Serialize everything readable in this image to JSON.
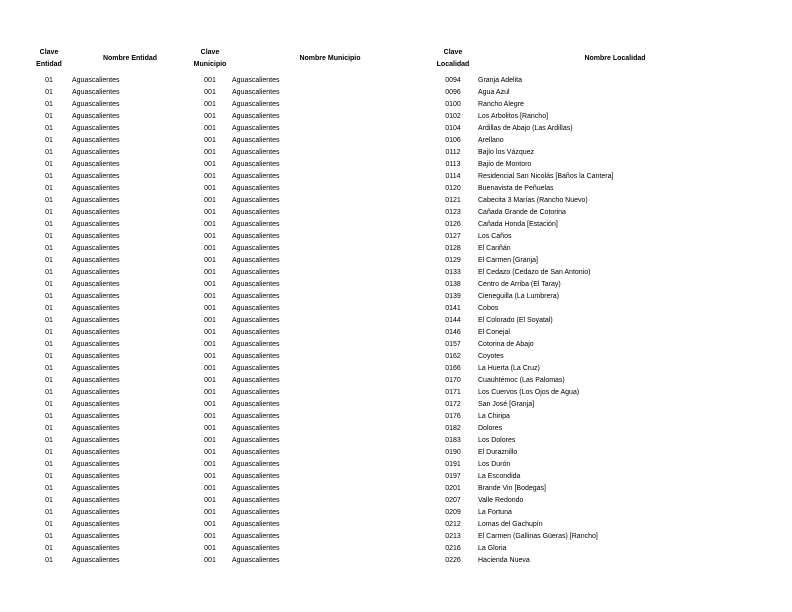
{
  "headers": {
    "clave_entidad": [
      "Clave",
      "Entidad"
    ],
    "nombre_entidad": "Nombre Entidad",
    "clave_municipio": [
      "Clave",
      "Municipio"
    ],
    "nombre_municipio": "Nombre Municipio",
    "clave_localidad": [
      "Clave",
      "Localidad"
    ],
    "nombre_localidad": "Nombre Localidad"
  },
  "rows": [
    [
      "01",
      "Aguascalientes",
      "001",
      "Aguascalientes",
      "0094",
      "Granja Adelita"
    ],
    [
      "01",
      "Aguascalientes",
      "001",
      "Aguascalientes",
      "0096",
      "Agua Azul"
    ],
    [
      "01",
      "Aguascalientes",
      "001",
      "Aguascalientes",
      "0100",
      "Rancho Alegre"
    ],
    [
      "01",
      "Aguascalientes",
      "001",
      "Aguascalientes",
      "0102",
      "Los Arbolitos [Rancho]"
    ],
    [
      "01",
      "Aguascalientes",
      "001",
      "Aguascalientes",
      "0104",
      "Ardillas de Abajo (Las Ardillas)"
    ],
    [
      "01",
      "Aguascalientes",
      "001",
      "Aguascalientes",
      "0106",
      "Arellano"
    ],
    [
      "01",
      "Aguascalientes",
      "001",
      "Aguascalientes",
      "0112",
      "Bajío los Vázquez"
    ],
    [
      "01",
      "Aguascalientes",
      "001",
      "Aguascalientes",
      "0113",
      "Bajío de Montoro"
    ],
    [
      "01",
      "Aguascalientes",
      "001",
      "Aguascalientes",
      "0114",
      "Residencial San Nicolás [Baños la Cantera]"
    ],
    [
      "01",
      "Aguascalientes",
      "001",
      "Aguascalientes",
      "0120",
      "Buenavista de Peñuelas"
    ],
    [
      "01",
      "Aguascalientes",
      "001",
      "Aguascalientes",
      "0121",
      "Cabecita 3 Marías (Rancho Nuevo)"
    ],
    [
      "01",
      "Aguascalientes",
      "001",
      "Aguascalientes",
      "0123",
      "Cañada Grande de Cotorina"
    ],
    [
      "01",
      "Aguascalientes",
      "001",
      "Aguascalientes",
      "0126",
      "Cañada Honda [Estación]"
    ],
    [
      "01",
      "Aguascalientes",
      "001",
      "Aguascalientes",
      "0127",
      "Los Caños"
    ],
    [
      "01",
      "Aguascalientes",
      "001",
      "Aguascalientes",
      "0128",
      "El Cariñán"
    ],
    [
      "01",
      "Aguascalientes",
      "001",
      "Aguascalientes",
      "0129",
      "El Carmen [Granja]"
    ],
    [
      "01",
      "Aguascalientes",
      "001",
      "Aguascalientes",
      "0133",
      "El Cedazo (Cedazo de San Antonio)"
    ],
    [
      "01",
      "Aguascalientes",
      "001",
      "Aguascalientes",
      "0138",
      "Centro de Arriba (El Taray)"
    ],
    [
      "01",
      "Aguascalientes",
      "001",
      "Aguascalientes",
      "0139",
      "Cieneguilla (La Lumbrera)"
    ],
    [
      "01",
      "Aguascalientes",
      "001",
      "Aguascalientes",
      "0141",
      "Cobos"
    ],
    [
      "01",
      "Aguascalientes",
      "001",
      "Aguascalientes",
      "0144",
      "El Colorado (El Soyatal)"
    ],
    [
      "01",
      "Aguascalientes",
      "001",
      "Aguascalientes",
      "0146",
      "El Conejal"
    ],
    [
      "01",
      "Aguascalientes",
      "001",
      "Aguascalientes",
      "0157",
      "Cotorina de Abajo"
    ],
    [
      "01",
      "Aguascalientes",
      "001",
      "Aguascalientes",
      "0162",
      "Coyotes"
    ],
    [
      "01",
      "Aguascalientes",
      "001",
      "Aguascalientes",
      "0166",
      "La Huerta (La Cruz)"
    ],
    [
      "01",
      "Aguascalientes",
      "001",
      "Aguascalientes",
      "0170",
      "Cuauhtémoc (Las Palomas)"
    ],
    [
      "01",
      "Aguascalientes",
      "001",
      "Aguascalientes",
      "0171",
      "Los Cuervos (Los Ojos de Agua)"
    ],
    [
      "01",
      "Aguascalientes",
      "001",
      "Aguascalientes",
      "0172",
      "San José [Granja]"
    ],
    [
      "01",
      "Aguascalientes",
      "001",
      "Aguascalientes",
      "0176",
      "La Chiripa"
    ],
    [
      "01",
      "Aguascalientes",
      "001",
      "Aguascalientes",
      "0182",
      "Dolores"
    ],
    [
      "01",
      "Aguascalientes",
      "001",
      "Aguascalientes",
      "0183",
      "Los Dolores"
    ],
    [
      "01",
      "Aguascalientes",
      "001",
      "Aguascalientes",
      "0190",
      "El Duraznillo"
    ],
    [
      "01",
      "Aguascalientes",
      "001",
      "Aguascalientes",
      "0191",
      "Los Durón"
    ],
    [
      "01",
      "Aguascalientes",
      "001",
      "Aguascalientes",
      "0197",
      "La Escondida"
    ],
    [
      "01",
      "Aguascalientes",
      "001",
      "Aguascalientes",
      "0201",
      "Brande Vin [Bodegas]"
    ],
    [
      "01",
      "Aguascalientes",
      "001",
      "Aguascalientes",
      "0207",
      "Valle Redondo"
    ],
    [
      "01",
      "Aguascalientes",
      "001",
      "Aguascalientes",
      "0209",
      "La Fortuna"
    ],
    [
      "01",
      "Aguascalientes",
      "001",
      "Aguascalientes",
      "0212",
      "Lomas del Gachupín"
    ],
    [
      "01",
      "Aguascalientes",
      "001",
      "Aguascalientes",
      "0213",
      "El Carmen (Gallinas Güeras) [Rancho]"
    ],
    [
      "01",
      "Aguascalientes",
      "001",
      "Aguascalientes",
      "0216",
      "La Gloria"
    ],
    [
      "01",
      "Aguascalientes",
      "001",
      "Aguascalientes",
      "0226",
      "Hacienda Nueva"
    ]
  ]
}
